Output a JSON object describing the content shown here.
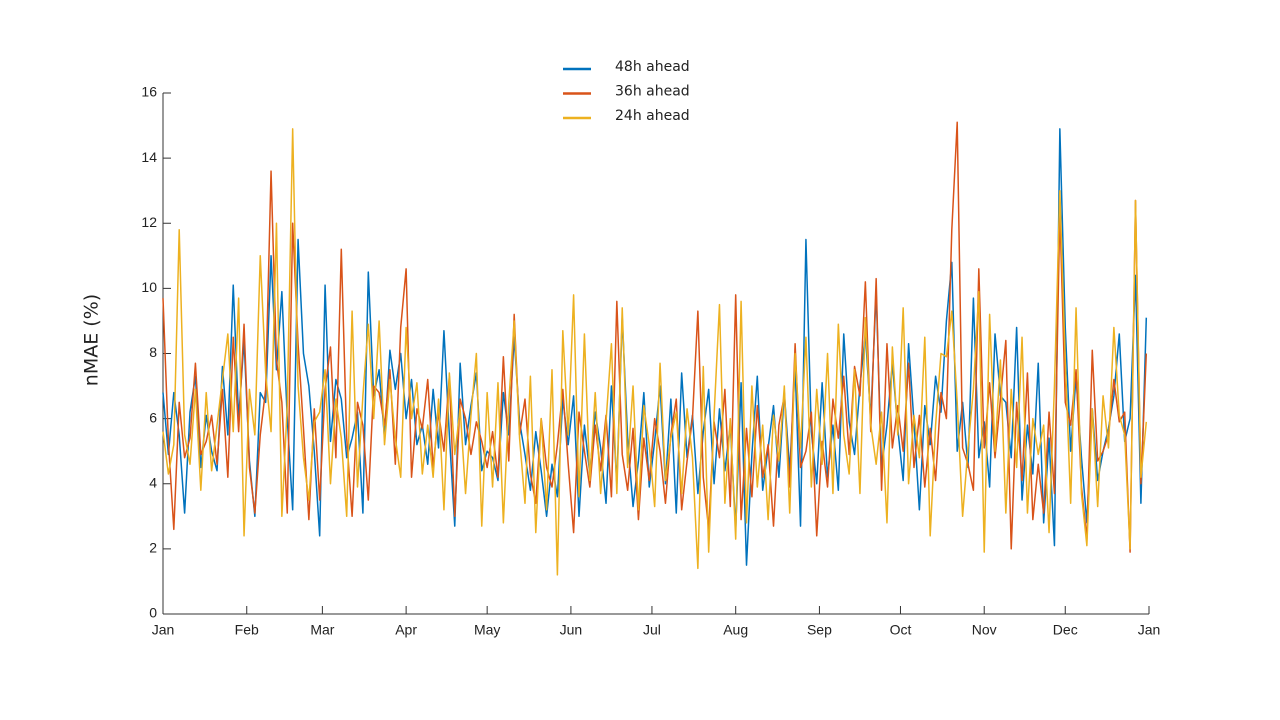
{
  "chart_data": {
    "type": "line",
    "y_label": "nMAE (%)",
    "xlim": [
      0,
      365
    ],
    "xticks": [
      {
        "value": 0,
        "label": "Jan"
      },
      {
        "value": 31,
        "label": "Feb"
      },
      {
        "value": 59,
        "label": "Mar"
      },
      {
        "value": 90,
        "label": "Apr"
      },
      {
        "value": 120,
        "label": "May"
      },
      {
        "value": 151,
        "label": "Jun"
      },
      {
        "value": 181,
        "label": "Jul"
      },
      {
        "value": 212,
        "label": "Aug"
      },
      {
        "value": 243,
        "label": "Sep"
      },
      {
        "value": 273,
        "label": "Oct"
      },
      {
        "value": 304,
        "label": "Nov"
      },
      {
        "value": 334,
        "label": "Dec"
      },
      {
        "value": 365,
        "label": "Jan"
      }
    ],
    "ylim": [
      0,
      16
    ],
    "yticks": [
      0,
      2,
      4,
      6,
      8,
      10,
      12,
      14,
      16
    ],
    "legend": "top-center",
    "x": [
      0,
      2,
      4,
      6,
      8,
      10,
      12,
      14,
      16,
      18,
      20,
      22,
      24,
      26,
      28,
      30,
      32,
      34,
      36,
      38,
      40,
      42,
      44,
      46,
      48,
      50,
      52,
      54,
      56,
      58,
      60,
      62,
      64,
      66,
      68,
      70,
      72,
      74,
      76,
      78,
      80,
      82,
      84,
      86,
      88,
      90,
      92,
      94,
      96,
      98,
      100,
      102,
      104,
      106,
      108,
      110,
      112,
      114,
      116,
      118,
      120,
      122,
      124,
      126,
      128,
      130,
      132,
      134,
      136,
      138,
      140,
      142,
      144,
      146,
      148,
      150,
      152,
      154,
      156,
      158,
      160,
      162,
      164,
      166,
      168,
      170,
      172,
      174,
      176,
      178,
      180,
      182,
      184,
      186,
      188,
      190,
      192,
      194,
      196,
      198,
      200,
      202,
      204,
      206,
      208,
      210,
      212,
      214,
      216,
      218,
      220,
      222,
      224,
      226,
      228,
      230,
      232,
      234,
      236,
      238,
      240,
      242,
      244,
      246,
      248,
      250,
      252,
      254,
      256,
      258,
      260,
      262,
      264,
      266,
      268,
      270,
      272,
      274,
      276,
      278,
      280,
      282,
      284,
      286,
      288,
      290,
      292,
      294,
      296,
      298,
      300,
      302,
      304,
      306,
      308,
      310,
      312,
      314,
      316,
      318,
      320,
      322,
      324,
      326,
      328,
      330,
      332,
      334,
      336,
      338,
      340,
      342,
      344,
      346,
      348,
      350,
      352,
      354,
      356,
      358,
      360,
      362,
      364
    ],
    "series": [
      {
        "name": "48h ahead",
        "color": "#0072bd",
        "values": [
          6.8,
          4.9,
          6.8,
          5.5,
          3.1,
          6.2,
          7.3,
          4.5,
          6.1,
          5.0,
          4.4,
          7.6,
          5.5,
          10.1,
          6.0,
          8.4,
          4.7,
          3.0,
          6.8,
          6.5,
          11.0,
          7.5,
          9.9,
          6.0,
          3.2,
          11.5,
          8.0,
          7.0,
          5.0,
          2.4,
          10.1,
          5.3,
          7.2,
          6.6,
          4.8,
          5.4,
          6.2,
          3.1,
          10.5,
          6.7,
          7.5,
          5.4,
          8.1,
          6.9,
          8.0,
          6.0,
          7.2,
          5.2,
          5.8,
          4.6,
          6.9,
          5.1,
          8.7,
          5.5,
          2.7,
          7.7,
          5.2,
          6.4,
          7.4,
          4.4,
          5.0,
          4.8,
          4.1,
          6.8,
          5.5,
          8.5,
          5.9,
          4.9,
          3.8,
          5.6,
          4.4,
          3.0,
          4.6,
          3.6,
          6.6,
          5.2,
          6.7,
          3.0,
          5.8,
          4.3,
          6.2,
          5.1,
          3.4,
          7.0,
          4.0,
          9.1,
          5.4,
          3.3,
          4.7,
          6.8,
          3.9,
          5.3,
          7.0,
          4.0,
          6.6,
          3.1,
          7.4,
          4.8,
          6.1,
          3.7,
          5.6,
          6.9,
          4.0,
          6.3,
          4.4,
          5.8,
          2.6,
          7.1,
          1.5,
          4.9,
          7.3,
          3.8,
          5.1,
          6.4,
          4.2,
          6.8,
          4.4,
          7.6,
          2.7,
          11.5,
          5.6,
          4.0,
          7.1,
          4.2,
          5.8,
          3.8,
          8.6,
          5.9,
          4.9,
          7.0,
          8.6,
          6.0,
          9.9,
          4.5,
          5.8,
          7.7,
          5.7,
          4.1,
          8.3,
          5.9,
          3.2,
          6.4,
          5.2,
          7.3,
          6.2,
          9.0,
          10.8,
          5.0,
          6.5,
          4.5,
          9.7,
          4.8,
          5.9,
          3.9,
          8.6,
          6.7,
          6.5,
          4.8,
          8.8,
          3.5,
          5.8,
          4.3,
          7.7,
          2.8,
          5.4,
          2.1,
          14.9,
          8.8,
          5.0,
          7.3,
          4.8,
          2.8,
          6.3,
          4.1,
          5.0,
          5.7,
          6.7,
          8.6,
          5.3,
          6.0,
          10.4,
          3.4,
          9.1
        ]
      },
      {
        "name": "36h ahead",
        "color": "#d95319",
        "values": [
          9.7,
          5.3,
          2.6,
          6.5,
          4.8,
          5.4,
          7.7,
          4.9,
          5.3,
          6.1,
          4.6,
          6.9,
          4.2,
          8.5,
          5.6,
          8.9,
          4.5,
          3.1,
          5.5,
          6.9,
          13.6,
          7.8,
          6.5,
          3.1,
          12.0,
          8.3,
          5.7,
          2.9,
          6.3,
          3.5,
          6.9,
          8.2,
          4.8,
          11.2,
          5.4,
          3.0,
          6.5,
          5.8,
          3.5,
          7.0,
          6.8,
          5.8,
          7.5,
          4.6,
          8.8,
          10.6,
          4.2,
          6.3,
          5.7,
          7.2,
          4.5,
          6.2,
          5.0,
          7.3,
          3.0,
          6.6,
          6.0,
          4.9,
          5.9,
          5.3,
          4.5,
          5.6,
          4.2,
          7.9,
          4.7,
          9.2,
          5.5,
          6.6,
          4.3,
          3.4,
          6.0,
          4.5,
          3.9,
          5.2,
          6.9,
          4.6,
          2.5,
          6.2,
          5.0,
          3.9,
          5.8,
          4.4,
          6.1,
          3.6,
          9.6,
          4.9,
          3.8,
          5.7,
          2.9,
          5.4,
          4.1,
          6.0,
          5.0,
          3.4,
          5.5,
          6.6,
          3.2,
          4.7,
          6.0,
          9.3,
          4.2,
          2.6,
          5.9,
          4.8,
          6.9,
          3.3,
          9.8,
          2.9,
          5.7,
          3.6,
          6.4,
          4.2,
          5.2,
          2.7,
          5.8,
          6.7,
          3.9,
          8.3,
          4.5,
          5.0,
          6.2,
          2.4,
          5.3,
          3.9,
          6.6,
          5.4,
          7.3,
          4.9,
          7.6,
          6.7,
          10.2,
          5.6,
          10.3,
          3.8,
          8.3,
          5.1,
          6.4,
          5.0,
          7.7,
          4.5,
          6.1,
          3.9,
          5.7,
          4.1,
          6.8,
          6.0,
          11.8,
          15.1,
          5.1,
          4.6,
          3.8,
          10.6,
          5.1,
          7.1,
          4.8,
          6.6,
          8.4,
          2.0,
          6.5,
          4.1,
          7.4,
          2.9,
          4.6,
          3.1,
          6.2,
          3.7,
          12.4,
          6.5,
          5.8,
          7.5,
          3.9,
          2.3,
          8.1,
          4.7,
          5.0,
          5.5,
          7.2,
          5.9,
          6.2,
          1.9,
          12.7,
          4.0,
          8.0
        ]
      },
      {
        "name": "24h ahead",
        "color": "#edb120",
        "values": [
          5.6,
          4.3,
          5.2,
          11.8,
          5.5,
          4.6,
          6.9,
          3.8,
          6.8,
          4.4,
          5.8,
          7.2,
          8.6,
          5.6,
          9.7,
          2.4,
          6.9,
          5.5,
          11.0,
          7.4,
          5.6,
          12.0,
          3.0,
          6.4,
          14.9,
          7.0,
          4.8,
          3.5,
          5.9,
          6.2,
          7.5,
          4.0,
          6.6,
          5.4,
          3.0,
          9.3,
          3.9,
          6.7,
          8.9,
          6.0,
          9.0,
          5.2,
          7.2,
          5.4,
          4.2,
          8.8,
          6.0,
          7.1,
          4.3,
          5.8,
          4.2,
          6.6,
          3.2,
          7.4,
          4.9,
          6.3,
          3.7,
          6.1,
          8.0,
          2.7,
          6.8,
          3.9,
          7.1,
          2.8,
          6.5,
          9.0,
          5.4,
          3.4,
          7.3,
          2.5,
          6.0,
          3.2,
          7.5,
          1.2,
          8.7,
          5.5,
          9.8,
          3.6,
          8.6,
          4.1,
          6.8,
          3.7,
          5.9,
          8.3,
          3.7,
          9.4,
          4.5,
          7.0,
          3.2,
          6.4,
          5.2,
          3.3,
          7.7,
          4.1,
          5.4,
          6.2,
          3.7,
          6.3,
          4.8,
          1.4,
          7.6,
          1.9,
          6.1,
          9.5,
          3.4,
          6.0,
          2.3,
          9.6,
          2.8,
          7.0,
          3.9,
          5.8,
          2.9,
          6.1,
          4.7,
          7.0,
          3.1,
          8.0,
          5.1,
          8.5,
          3.9,
          6.9,
          4.6,
          8.0,
          3.7,
          8.9,
          5.5,
          4.3,
          7.5,
          3.7,
          9.1,
          5.8,
          4.6,
          6.2,
          2.8,
          8.2,
          5.5,
          9.4,
          4.0,
          6.1,
          4.8,
          8.5,
          2.4,
          5.8,
          8.0,
          7.9,
          9.3,
          6.5,
          3.0,
          5.1,
          6.9,
          9.9,
          1.9,
          9.2,
          5.0,
          7.8,
          3.1,
          6.9,
          4.5,
          8.5,
          3.1,
          6.0,
          4.9,
          5.8,
          2.5,
          7.0,
          13.0,
          7.8,
          3.4,
          9.4,
          3.7,
          2.1,
          6.3,
          3.3,
          6.7,
          5.1,
          8.8,
          6.1,
          5.5,
          2.0,
          12.7,
          4.2,
          5.9
        ]
      }
    ]
  }
}
